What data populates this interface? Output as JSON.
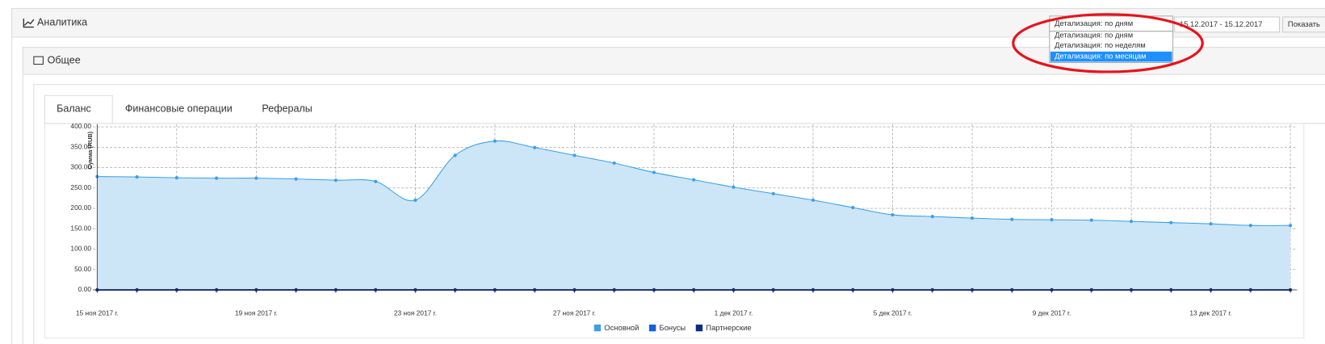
{
  "header": {
    "title": "Аналитика",
    "select": "Детализация: по дням",
    "options": [
      "Детализация: по дням",
      "Детализация: по неделям",
      "Детализация: по месяцам"
    ],
    "date_range": "15.12.2017 - 15.12.2017",
    "button": "Показать"
  },
  "panel": {
    "title": "Общее",
    "tabs": [
      "Баланс",
      "Финансовые операции",
      "Рефералы"
    ]
  },
  "chart_data": {
    "type": "area",
    "y_label": "Сумма (RUB)",
    "categories": [
      "15 ноя 2017 г.",
      null,
      null,
      null,
      "19 ноя 2017 г.",
      null,
      null,
      null,
      "23 ноя 2017 г.",
      null,
      null,
      null,
      "27 ноя 2017 г.",
      null,
      null,
      null,
      "1 дек 2017 г.",
      null,
      null,
      null,
      "5 дек 2017 г.",
      null,
      null,
      null,
      "9 дек 2017 г.",
      null,
      null,
      null,
      "13 дек 2017 г.",
      null,
      null
    ],
    "series": [
      {
        "name": "Основной",
        "color": "#3aa0e8",
        "values": [
          278,
          277,
          275,
          274,
          274,
          272,
          269,
          266,
          220,
          330,
          365,
          349,
          330,
          311,
          288,
          270,
          252,
          236,
          220,
          202,
          184,
          180,
          176,
          173,
          172,
          171,
          168,
          165,
          162,
          158,
          158
        ]
      },
      {
        "name": "Бонусы",
        "color": "#1560d8",
        "values": [
          0,
          0,
          0,
          0,
          0,
          0,
          0,
          0,
          0,
          0,
          0,
          0,
          0,
          0,
          0,
          0,
          0,
          0,
          0,
          0,
          0,
          0,
          0,
          0,
          0,
          0,
          0,
          0,
          0,
          0,
          0
        ]
      },
      {
        "name": "Партнерские",
        "color": "#0a2a80",
        "values": [
          0,
          0,
          0,
          0,
          0,
          0,
          0,
          0,
          0,
          0,
          0,
          0,
          0,
          0,
          0,
          0,
          0,
          0,
          0,
          0,
          0,
          0,
          0,
          0,
          0,
          0,
          0,
          0,
          0,
          0,
          0
        ]
      }
    ],
    "ylim": [
      0,
      400
    ],
    "yticks": [
      {
        "value": 0,
        "label": "0.00"
      },
      {
        "value": 50,
        "label": "50.00"
      },
      {
        "value": 100,
        "label": "100.00"
      },
      {
        "value": 150,
        "label": "150.00"
      },
      {
        "value": 200,
        "label": "200.00"
      },
      {
        "value": 250,
        "label": "250.00"
      },
      {
        "value": 300,
        "label": "300.00"
      },
      {
        "value": 350,
        "label": "350.00"
      },
      {
        "value": 400,
        "label": "400.00"
      }
    ],
    "grid": true
  }
}
